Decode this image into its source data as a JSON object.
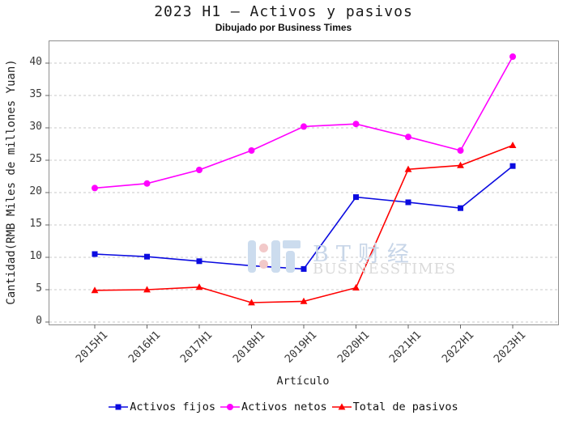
{
  "figure": {
    "title": "2023 H1 – Activos y pasivos",
    "subtitle": "Dibujado por Business Times"
  },
  "watermark": {
    "brand": "BT财经",
    "subtext": "BUSINESSTIMES"
  },
  "chart_data": {
    "type": "line",
    "title": "2023 H1 – Activos y pasivos",
    "subtitle": "Dibujado por Business Times",
    "xlabel": "Artículo",
    "ylabel": "Cantidad(RMB Miles de millones Yuan)",
    "categories": [
      "2015H1",
      "2016H1",
      "2017H1",
      "2018H1",
      "2019H1",
      "2020H1",
      "2021H1",
      "2022H1",
      "2023H1"
    ],
    "series": [
      {
        "name": "Activos fijos",
        "marker": "square",
        "color": "#0b0be0",
        "values": [
          10.5,
          10.1,
          9.4,
          8.7,
          8.2,
          19.3,
          18.5,
          17.6,
          24.1
        ]
      },
      {
        "name": "Activos netos",
        "marker": "circle",
        "color": "#ff00ff",
        "values": [
          20.7,
          21.4,
          23.5,
          26.5,
          30.2,
          30.6,
          28.6,
          26.5,
          41.0
        ]
      },
      {
        "name": "Total de pasivos",
        "marker": "triangle",
        "color": "#ff0000",
        "values": [
          4.9,
          5.0,
          5.4,
          3.0,
          3.2,
          5.3,
          23.6,
          24.2,
          27.3
        ]
      }
    ],
    "yticks": [
      0,
      5,
      10,
      15,
      20,
      25,
      30,
      35,
      40
    ],
    "ylim": [
      0,
      43.4
    ],
    "grid": true,
    "grid_style": "dashed",
    "legend_position": "bottom"
  },
  "colors": {
    "grid": "#c9c9c9",
    "frame": "#8f8f8f",
    "tick": "#666666"
  }
}
